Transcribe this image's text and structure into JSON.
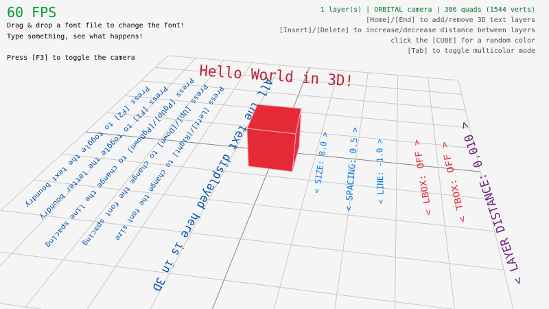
{
  "hud": {
    "fps": "60 FPS",
    "left_lines": [
      "Drag & drop a font file to change the font!",
      "Type something, see what happens!",
      "Press [F3] to toggle the camera"
    ],
    "status": "1 layer(s) | ORBITAL camera |  386 quads (1544 verts)",
    "right_lines": [
      "[Home]/[End] to add/remove 3D text layers",
      "[Insert]/[Delete] to increase/decrease distance between layers",
      "click the [CUBE] for a random color",
      "[Tab] to toggle multicolor mode"
    ]
  },
  "scene": {
    "hello_text": "Hello World in 3D!",
    "big_text": "All the text displayed here is in 3D",
    "instructions": [
      "Press [Left]/[Right] to change the font size",
      "Press [Up]/[Down] to change the font spacing",
      "Press [PgUp]/[PgDown] to change the line spacing",
      "Press [F1] to toggle the letter boundry",
      "Press [F2] to toggle the text boundry"
    ],
    "options": {
      "size": "< SIZE: 8.0 >",
      "spacing": "< SPACING: 0.5 >",
      "line": "< LINE: -1.0 >",
      "lbox": "< LBOX: OFF >",
      "tbox": "< TBOX: OFF >",
      "layer_distance": "< LAYER DISTANCE: 0.010 >"
    },
    "cube_color": "#e62937"
  },
  "colors": {
    "background": "#f5f5f5",
    "fps": "#009e2f",
    "status": "#00752c",
    "help": "#505050",
    "hello": "#be2137",
    "instructions": "#0052ac",
    "options_blue": "#0079f1",
    "options_red": "#e62937",
    "layer_distance": "#701f7e",
    "grid": "#c8c8c8",
    "grid_axis": "#828282"
  }
}
